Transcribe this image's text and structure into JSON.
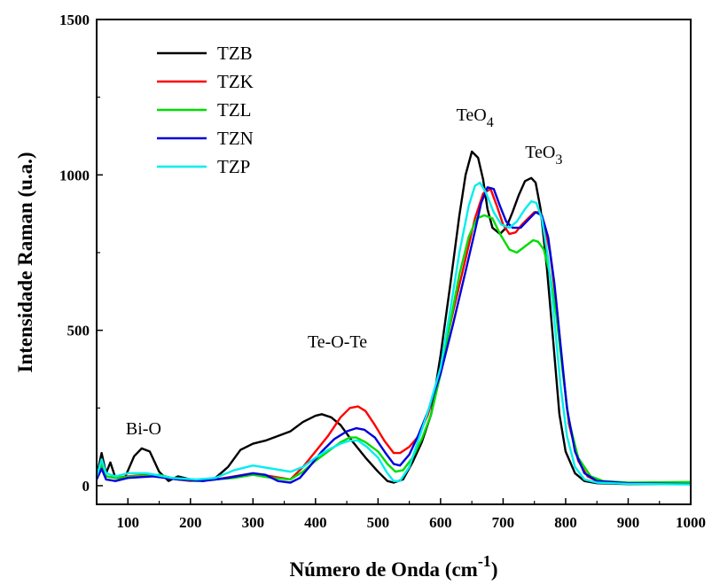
{
  "chart_data": {
    "type": "line",
    "xlabel": {
      "main": "Número de Onda (cm",
      "sup": "-1",
      "close": ")"
    },
    "ylabel": "Intensidade Raman (u.a.)",
    "xlim": [
      50,
      1000
    ],
    "ylim": [
      -60,
      1500
    ],
    "x_ticks": [
      100,
      200,
      300,
      400,
      500,
      600,
      700,
      800,
      900,
      1000
    ],
    "y_ticks": [
      0,
      500,
      1000,
      1500
    ],
    "x_tick_labels": [
      "100",
      "200",
      "300",
      "400",
      "500",
      "600",
      "700",
      "800",
      "900",
      "1000"
    ],
    "y_tick_labels": [
      "0",
      "500",
      "1000",
      "1500"
    ],
    "legend_position": "top-left",
    "annotations": [
      {
        "text": "Bi-O",
        "x": 125,
        "y": 165
      },
      {
        "text": "Te-O-Te",
        "x": 435,
        "y": 445
      },
      {
        "text": "TeO",
        "sub": "4",
        "x": 655,
        "y": 1175
      },
      {
        "text": "TeO",
        "sub": "3",
        "x": 765,
        "y": 1055
      }
    ],
    "series": [
      {
        "name": "TZB",
        "color": "#000000",
        "points": [
          [
            50,
            30
          ],
          [
            58,
            105
          ],
          [
            65,
            40
          ],
          [
            72,
            75
          ],
          [
            80,
            25
          ],
          [
            95,
            25
          ],
          [
            110,
            95
          ],
          [
            122,
            120
          ],
          [
            135,
            110
          ],
          [
            150,
            45
          ],
          [
            165,
            15
          ],
          [
            180,
            30
          ],
          [
            200,
            20
          ],
          [
            220,
            15
          ],
          [
            240,
            25
          ],
          [
            260,
            60
          ],
          [
            280,
            115
          ],
          [
            300,
            135
          ],
          [
            320,
            145
          ],
          [
            340,
            160
          ],
          [
            360,
            175
          ],
          [
            380,
            205
          ],
          [
            400,
            225
          ],
          [
            410,
            230
          ],
          [
            425,
            220
          ],
          [
            440,
            195
          ],
          [
            460,
            140
          ],
          [
            480,
            90
          ],
          [
            500,
            45
          ],
          [
            515,
            15
          ],
          [
            525,
            10
          ],
          [
            540,
            20
          ],
          [
            555,
            75
          ],
          [
            570,
            140
          ],
          [
            585,
            230
          ],
          [
            600,
            420
          ],
          [
            615,
            640
          ],
          [
            630,
            870
          ],
          [
            640,
            1000
          ],
          [
            650,
            1075
          ],
          [
            660,
            1055
          ],
          [
            668,
            985
          ],
          [
            675,
            890
          ],
          [
            683,
            830
          ],
          [
            695,
            810
          ],
          [
            705,
            830
          ],
          [
            715,
            880
          ],
          [
            725,
            935
          ],
          [
            735,
            980
          ],
          [
            745,
            990
          ],
          [
            752,
            975
          ],
          [
            760,
            890
          ],
          [
            770,
            700
          ],
          [
            780,
            470
          ],
          [
            790,
            230
          ],
          [
            800,
            110
          ],
          [
            815,
            40
          ],
          [
            830,
            15
          ],
          [
            850,
            8
          ],
          [
            900,
            5
          ],
          [
            1000,
            5
          ]
        ]
      },
      {
        "name": "TZK",
        "color": "#ff0000",
        "points": [
          [
            50,
            25
          ],
          [
            58,
            80
          ],
          [
            65,
            30
          ],
          [
            80,
            25
          ],
          [
            100,
            30
          ],
          [
            130,
            35
          ],
          [
            160,
            25
          ],
          [
            200,
            15
          ],
          [
            240,
            20
          ],
          [
            270,
            30
          ],
          [
            300,
            40
          ],
          [
            330,
            30
          ],
          [
            360,
            20
          ],
          [
            380,
            60
          ],
          [
            400,
            110
          ],
          [
            420,
            160
          ],
          [
            440,
            220
          ],
          [
            455,
            250
          ],
          [
            468,
            255
          ],
          [
            480,
            240
          ],
          [
            495,
            195
          ],
          [
            510,
            145
          ],
          [
            525,
            105
          ],
          [
            535,
            105
          ],
          [
            550,
            125
          ],
          [
            565,
            160
          ],
          [
            580,
            230
          ],
          [
            600,
            380
          ],
          [
            620,
            560
          ],
          [
            640,
            730
          ],
          [
            655,
            860
          ],
          [
            668,
            940
          ],
          [
            680,
            955
          ],
          [
            690,
            900
          ],
          [
            700,
            840
          ],
          [
            710,
            810
          ],
          [
            720,
            815
          ],
          [
            730,
            840
          ],
          [
            740,
            860
          ],
          [
            750,
            880
          ],
          [
            758,
            880
          ],
          [
            766,
            840
          ],
          [
            775,
            750
          ],
          [
            785,
            590
          ],
          [
            795,
            380
          ],
          [
            805,
            200
          ],
          [
            820,
            80
          ],
          [
            835,
            30
          ],
          [
            850,
            15
          ],
          [
            900,
            8
          ],
          [
            1000,
            5
          ]
        ]
      },
      {
        "name": "TZL",
        "color": "#00dd00",
        "points": [
          [
            50,
            25
          ],
          [
            58,
            70
          ],
          [
            65,
            30
          ],
          [
            80,
            25
          ],
          [
            110,
            30
          ],
          [
            150,
            35
          ],
          [
            180,
            20
          ],
          [
            210,
            15
          ],
          [
            240,
            20
          ],
          [
            270,
            25
          ],
          [
            300,
            35
          ],
          [
            330,
            25
          ],
          [
            360,
            20
          ],
          [
            380,
            45
          ],
          [
            400,
            80
          ],
          [
            420,
            110
          ],
          [
            440,
            140
          ],
          [
            455,
            155
          ],
          [
            465,
            155
          ],
          [
            480,
            140
          ],
          [
            500,
            110
          ],
          [
            515,
            70
          ],
          [
            528,
            45
          ],
          [
            540,
            50
          ],
          [
            555,
            90
          ],
          [
            570,
            150
          ],
          [
            585,
            230
          ],
          [
            600,
            360
          ],
          [
            615,
            520
          ],
          [
            630,
            680
          ],
          [
            645,
            800
          ],
          [
            658,
            860
          ],
          [
            670,
            870
          ],
          [
            683,
            860
          ],
          [
            695,
            810
          ],
          [
            710,
            760
          ],
          [
            722,
            750
          ],
          [
            735,
            770
          ],
          [
            748,
            790
          ],
          [
            756,
            785
          ],
          [
            765,
            760
          ],
          [
            775,
            680
          ],
          [
            785,
            550
          ],
          [
            795,
            370
          ],
          [
            805,
            210
          ],
          [
            820,
            90
          ],
          [
            840,
            30
          ],
          [
            860,
            15
          ],
          [
            900,
            10
          ],
          [
            1000,
            12
          ]
        ]
      },
      {
        "name": "TZN",
        "color": "#0000dd",
        "points": [
          [
            50,
            20
          ],
          [
            58,
            55
          ],
          [
            65,
            20
          ],
          [
            80,
            15
          ],
          [
            100,
            25
          ],
          [
            140,
            30
          ],
          [
            180,
            20
          ],
          [
            220,
            15
          ],
          [
            260,
            25
          ],
          [
            300,
            40
          ],
          [
            320,
            35
          ],
          [
            340,
            15
          ],
          [
            360,
            10
          ],
          [
            375,
            25
          ],
          [
            390,
            60
          ],
          [
            410,
            110
          ],
          [
            430,
            150
          ],
          [
            450,
            175
          ],
          [
            465,
            185
          ],
          [
            478,
            180
          ],
          [
            495,
            155
          ],
          [
            512,
            105
          ],
          [
            525,
            70
          ],
          [
            535,
            65
          ],
          [
            550,
            100
          ],
          [
            565,
            165
          ],
          [
            580,
            240
          ],
          [
            600,
            360
          ],
          [
            620,
            520
          ],
          [
            640,
            690
          ],
          [
            655,
            820
          ],
          [
            665,
            910
          ],
          [
            675,
            960
          ],
          [
            685,
            955
          ],
          [
            695,
            900
          ],
          [
            705,
            850
          ],
          [
            715,
            830
          ],
          [
            728,
            830
          ],
          [
            740,
            855
          ],
          [
            752,
            880
          ],
          [
            762,
            870
          ],
          [
            772,
            800
          ],
          [
            782,
            650
          ],
          [
            792,
            450
          ],
          [
            802,
            250
          ],
          [
            815,
            110
          ],
          [
            830,
            40
          ],
          [
            850,
            15
          ],
          [
            900,
            8
          ],
          [
            1000,
            5
          ]
        ]
      },
      {
        "name": "TZP",
        "color": "#00eeee",
        "points": [
          [
            50,
            30
          ],
          [
            58,
            85
          ],
          [
            65,
            40
          ],
          [
            80,
            30
          ],
          [
            100,
            40
          ],
          [
            130,
            40
          ],
          [
            170,
            25
          ],
          [
            210,
            20
          ],
          [
            240,
            25
          ],
          [
            270,
            50
          ],
          [
            300,
            65
          ],
          [
            330,
            55
          ],
          [
            360,
            45
          ],
          [
            380,
            60
          ],
          [
            400,
            90
          ],
          [
            420,
            115
          ],
          [
            440,
            135
          ],
          [
            455,
            145
          ],
          [
            468,
            145
          ],
          [
            482,
            125
          ],
          [
            500,
            90
          ],
          [
            515,
            40
          ],
          [
            525,
            15
          ],
          [
            535,
            15
          ],
          [
            550,
            60
          ],
          [
            565,
            150
          ],
          [
            580,
            240
          ],
          [
            600,
            380
          ],
          [
            615,
            560
          ],
          [
            630,
            750
          ],
          [
            645,
            900
          ],
          [
            655,
            965
          ],
          [
            663,
            975
          ],
          [
            672,
            945
          ],
          [
            685,
            880
          ],
          [
            697,
            840
          ],
          [
            710,
            830
          ],
          [
            722,
            850
          ],
          [
            735,
            890
          ],
          [
            745,
            915
          ],
          [
            753,
            910
          ],
          [
            762,
            860
          ],
          [
            772,
            730
          ],
          [
            782,
            530
          ],
          [
            792,
            320
          ],
          [
            802,
            160
          ],
          [
            815,
            60
          ],
          [
            830,
            20
          ],
          [
            850,
            10
          ],
          [
            900,
            6
          ],
          [
            1000,
            4
          ]
        ]
      }
    ]
  }
}
